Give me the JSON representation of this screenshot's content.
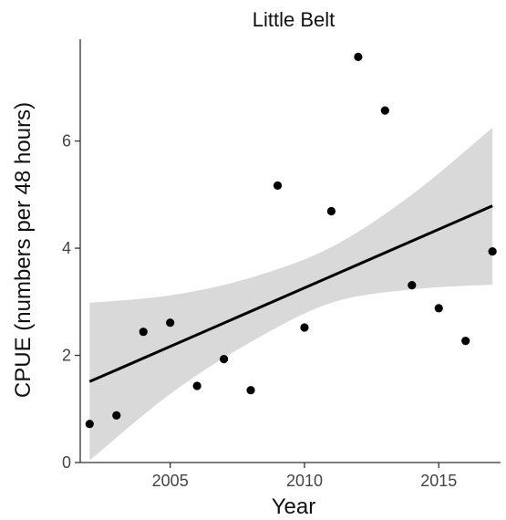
{
  "chart_data": {
    "type": "scatter",
    "title": "Little Belt",
    "xlabel": "Year",
    "ylabel": "CPUE (numbers per 48 hours)",
    "xlim": [
      2001.65,
      2017.3
    ],
    "ylim": [
      0,
      7.9
    ],
    "x_ticks": [
      2005,
      2010,
      2015
    ],
    "x_tick_labels": [
      "2005",
      "2010",
      "2015"
    ],
    "y_ticks": [
      0,
      2,
      4,
      6
    ],
    "y_tick_labels": [
      "0",
      "2",
      "4",
      "6"
    ],
    "grid": false,
    "legend": "none",
    "points": {
      "x": [
        2002,
        2003,
        2004,
        2005,
        2006,
        2007,
        2008,
        2009,
        2010,
        2011,
        2012,
        2013,
        2014,
        2015,
        2016,
        2017
      ],
      "y": [
        0.72,
        0.88,
        2.44,
        2.61,
        1.43,
        1.93,
        1.35,
        5.17,
        2.52,
        4.69,
        7.57,
        6.57,
        3.31,
        2.88,
        2.27,
        3.94
      ]
    },
    "fit": {
      "x": [
        2002,
        2017
      ],
      "y": [
        1.51,
        4.79
      ]
    },
    "confidence_band": {
      "x": [
        2002,
        2005,
        2008,
        2011,
        2014,
        2017
      ],
      "upper": [
        2.98,
        3.12,
        3.45,
        4.02,
        5.0,
        6.25
      ],
      "lower": [
        0.04,
        1.28,
        2.25,
        2.98,
        3.23,
        3.32
      ]
    },
    "colors": {
      "points": "#000000",
      "fit_line": "#000000",
      "band": "#d9d9d9",
      "axis": "#333333"
    }
  }
}
